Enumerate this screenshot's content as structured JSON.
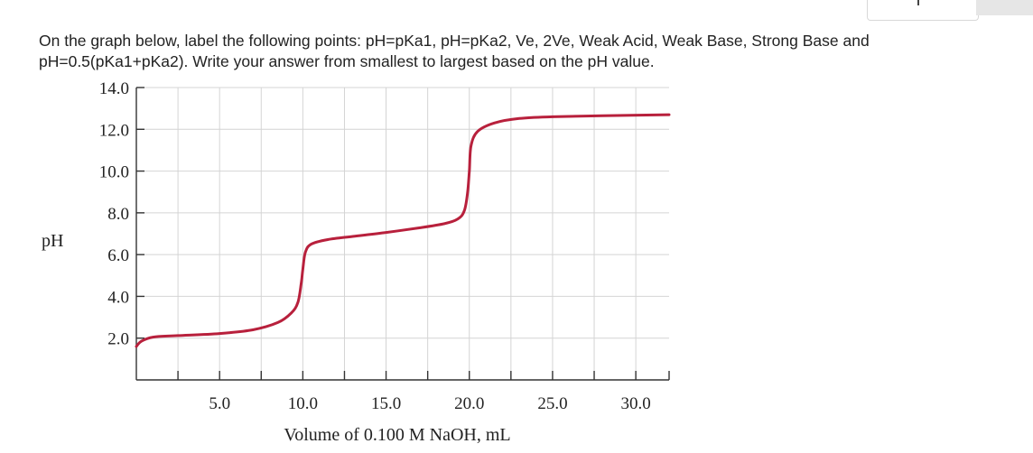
{
  "question": {
    "line1": "On the graph below, label the following points: pH=pKa1, pH=pKa2, Ve, 2Ve, Weak Acid, Weak Base, Strong Base and",
    "line2": "pH=0.5(pKa1+pKa2). Write your answer from smallest to largest based on the pH value."
  },
  "chart_data": {
    "type": "line",
    "xlabel": "Volume of 0.100 M NaOH, mL",
    "ylabel": "pH",
    "xlim": [
      0,
      32
    ],
    "ylim": [
      0,
      14
    ],
    "x_tick_values": [
      2.5,
      5,
      7.5,
      10,
      12.5,
      15,
      17.5,
      20,
      22.5,
      25,
      27.5,
      30,
      32
    ],
    "x_tick_labels": [
      {
        "value": 5,
        "label": "5.0"
      },
      {
        "value": 10,
        "label": "10.0"
      },
      {
        "value": 15,
        "label": "15.0"
      },
      {
        "value": 20,
        "label": "20.0"
      },
      {
        "value": 25,
        "label": "25.0"
      },
      {
        "value": 30,
        "label": "30.0"
      }
    ],
    "y_tick_labels": [
      {
        "value": 2,
        "label": "2.0"
      },
      {
        "value": 4,
        "label": "4.0"
      },
      {
        "value": 6,
        "label": "6.0"
      },
      {
        "value": 8,
        "label": "8.0"
      },
      {
        "value": 10,
        "label": "10.0"
      },
      {
        "value": 12,
        "label": "12.0"
      },
      {
        "value": 14,
        "label": "14.0"
      }
    ],
    "grid": true,
    "line_color": "#b8203c",
    "series": [
      {
        "values": [
          [
            0.0,
            1.6
          ],
          [
            0.3,
            1.85
          ],
          [
            1.0,
            2.05
          ],
          [
            2.5,
            2.12
          ],
          [
            5.0,
            2.22
          ],
          [
            7.0,
            2.4
          ],
          [
            8.5,
            2.75
          ],
          [
            9.3,
            3.2
          ],
          [
            9.7,
            3.7
          ],
          [
            9.9,
            4.6
          ],
          [
            10.0,
            5.3
          ],
          [
            10.15,
            6.1
          ],
          [
            10.5,
            6.5
          ],
          [
            11.5,
            6.72
          ],
          [
            13.0,
            6.87
          ],
          [
            15.0,
            7.06
          ],
          [
            17.0,
            7.28
          ],
          [
            18.5,
            7.48
          ],
          [
            19.3,
            7.7
          ],
          [
            19.7,
            8.1
          ],
          [
            19.9,
            9.0
          ],
          [
            20.0,
            10.0
          ],
          [
            20.1,
            11.2
          ],
          [
            20.5,
            11.9
          ],
          [
            21.5,
            12.3
          ],
          [
            23.0,
            12.52
          ],
          [
            25.0,
            12.6
          ],
          [
            28.0,
            12.65
          ],
          [
            32.0,
            12.7
          ]
        ]
      }
    ]
  }
}
